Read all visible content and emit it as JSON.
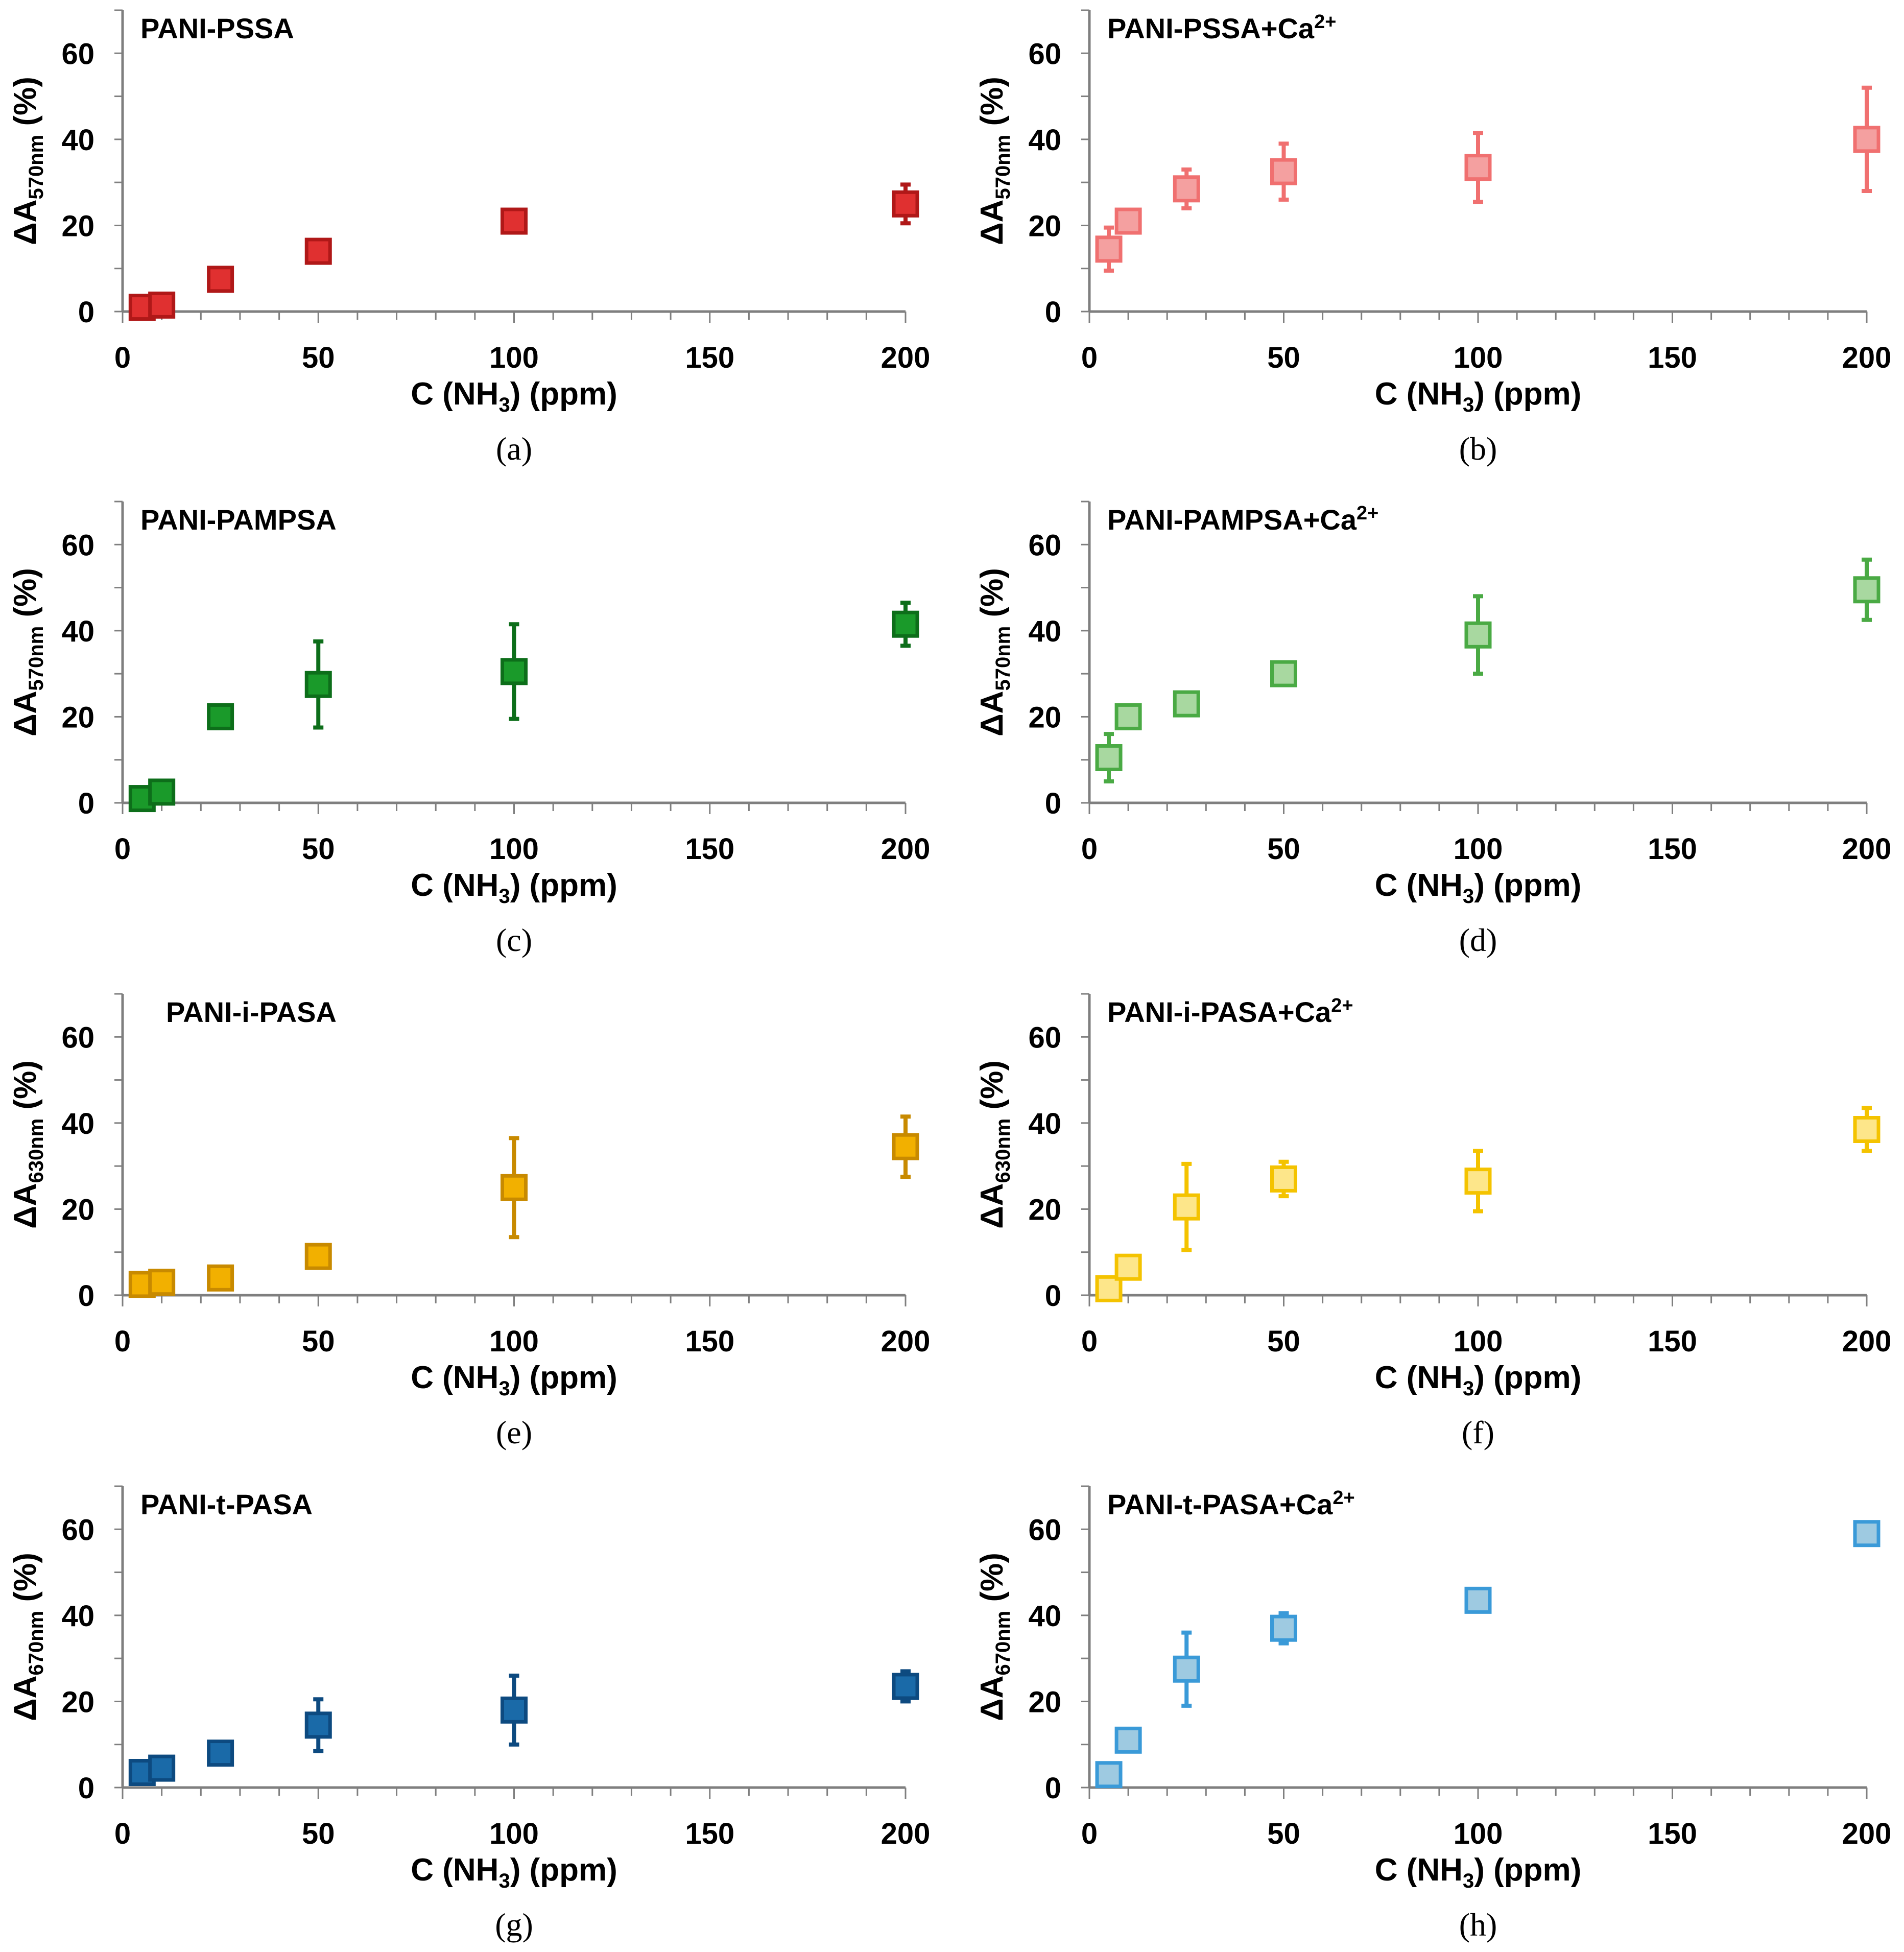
{
  "figure": {
    "x_axis_label_main": "C (NH",
    "x_axis_label_sub": "3",
    "x_axis_label_end": ") (ppm)"
  },
  "chart_data": [
    {
      "id": "a",
      "type": "scatter",
      "panel_label": "(a)",
      "title": "PANI-PSSA",
      "title_sup": "",
      "ylabel_main": "ΔA",
      "ylabel_sub": "570nm",
      "ylabel_end": " (%)",
      "xlim": [
        0,
        200
      ],
      "ylim": [
        0,
        70
      ],
      "xticks": [
        0,
        50,
        100,
        150,
        200
      ],
      "yticks": [
        0,
        20,
        40,
        60
      ],
      "color": "#e03030",
      "edge": "#b01818",
      "light": false,
      "points": [
        {
          "x": 5,
          "y": 1,
          "err": 0
        },
        {
          "x": 10,
          "y": 1.5,
          "err": 0
        },
        {
          "x": 25,
          "y": 7.5,
          "err": 0
        },
        {
          "x": 50,
          "y": 14,
          "err": 0
        },
        {
          "x": 100,
          "y": 21,
          "err": 0
        },
        {
          "x": 200,
          "y": 25,
          "err": 4.5
        }
      ]
    },
    {
      "id": "b",
      "type": "scatter",
      "panel_label": "(b)",
      "title": "PANI-PSSA+Ca",
      "title_sup": "2+",
      "ylabel_main": "ΔA",
      "ylabel_sub": "570nm",
      "ylabel_end": " (%)",
      "xlim": [
        0,
        200
      ],
      "ylim": [
        0,
        70
      ],
      "xticks": [
        0,
        50,
        100,
        150,
        200
      ],
      "yticks": [
        0,
        20,
        40,
        60
      ],
      "color": "#f4a0a0",
      "edge": "#f07070",
      "light": true,
      "points": [
        {
          "x": 5,
          "y": 14.5,
          "err": 5
        },
        {
          "x": 10,
          "y": 21,
          "err": 0
        },
        {
          "x": 25,
          "y": 28.5,
          "err": 4.5
        },
        {
          "x": 50,
          "y": 32.5,
          "err": 6.5
        },
        {
          "x": 100,
          "y": 33.5,
          "err": 8
        },
        {
          "x": 200,
          "y": 40,
          "err": 12
        }
      ]
    },
    {
      "id": "c",
      "type": "scatter",
      "panel_label": "(c)",
      "title": "PANI-PAMPSA",
      "title_sup": "",
      "ylabel_main": "ΔA",
      "ylabel_sub": "570nm",
      "ylabel_end": " (%)",
      "xlim": [
        0,
        200
      ],
      "ylim": [
        0,
        70
      ],
      "xticks": [
        0,
        50,
        100,
        150,
        200
      ],
      "yticks": [
        0,
        20,
        40,
        60
      ],
      "color": "#1a9a2a",
      "edge": "#0d6e1a",
      "light": false,
      "points": [
        {
          "x": 5,
          "y": 1,
          "err": 0
        },
        {
          "x": 10,
          "y": 2.5,
          "err": 0
        },
        {
          "x": 25,
          "y": 20,
          "err": 0
        },
        {
          "x": 50,
          "y": 27.5,
          "err": 10
        },
        {
          "x": 100,
          "y": 30.5,
          "err": 11
        },
        {
          "x": 200,
          "y": 41.5,
          "err": 5
        }
      ]
    },
    {
      "id": "d",
      "type": "scatter",
      "panel_label": "(d)",
      "title": "PANI-PAMPSA+Ca",
      "title_sup": "2+",
      "ylabel_main": "ΔA",
      "ylabel_sub": "570nm",
      "ylabel_end": " (%)",
      "xlim": [
        0,
        200
      ],
      "ylim": [
        0,
        70
      ],
      "xticks": [
        0,
        50,
        100,
        150,
        200
      ],
      "yticks": [
        0,
        20,
        40,
        60
      ],
      "color": "#a8d8a0",
      "edge": "#4aaa44",
      "light": true,
      "points": [
        {
          "x": 5,
          "y": 10.5,
          "err": 5.5
        },
        {
          "x": 10,
          "y": 20,
          "err": 0
        },
        {
          "x": 25,
          "y": 23,
          "err": 2.5
        },
        {
          "x": 50,
          "y": 30,
          "err": 0
        },
        {
          "x": 100,
          "y": 39,
          "err": 9
        },
        {
          "x": 200,
          "y": 49.5,
          "err": 7
        }
      ]
    },
    {
      "id": "e",
      "type": "scatter",
      "panel_label": "(e)",
      "title": "PANI-i-PASA",
      "title_sup": "",
      "ylabel_main": "ΔA",
      "ylabel_sub": "630nm",
      "ylabel_end": " (%)",
      "xlim": [
        0,
        200
      ],
      "ylim": [
        0,
        70
      ],
      "xticks": [
        0,
        50,
        100,
        150,
        200
      ],
      "yticks": [
        0,
        20,
        40,
        60
      ],
      "color": "#f2b000",
      "edge": "#c88a00",
      "light": false,
      "points": [
        {
          "x": 5,
          "y": 2.5,
          "err": 0
        },
        {
          "x": 10,
          "y": 3,
          "err": 2
        },
        {
          "x": 25,
          "y": 4,
          "err": 0
        },
        {
          "x": 50,
          "y": 9,
          "err": 0
        },
        {
          "x": 100,
          "y": 25,
          "err": 11.5
        },
        {
          "x": 200,
          "y": 34.5,
          "err": 7
        }
      ]
    },
    {
      "id": "f",
      "type": "scatter",
      "panel_label": "(f)",
      "title": "PANI-i-PASA+Ca",
      "title_sup": "2+",
      "ylabel_main": "ΔA",
      "ylabel_sub": "630nm",
      "ylabel_end": " (%)",
      "xlim": [
        0,
        200
      ],
      "ylim": [
        0,
        70
      ],
      "xticks": [
        0,
        50,
        100,
        150,
        200
      ],
      "yticks": [
        0,
        20,
        40,
        60
      ],
      "color": "#fde68a",
      "edge": "#f4c300",
      "light": true,
      "points": [
        {
          "x": 5,
          "y": 1.5,
          "err": 0
        },
        {
          "x": 10,
          "y": 6.5,
          "err": 0
        },
        {
          "x": 25,
          "y": 20.5,
          "err": 10
        },
        {
          "x": 50,
          "y": 27,
          "err": 4
        },
        {
          "x": 100,
          "y": 26.5,
          "err": 7
        },
        {
          "x": 200,
          "y": 38.5,
          "err": 5
        }
      ]
    },
    {
      "id": "g",
      "type": "scatter",
      "panel_label": "(g)",
      "title": "PANI-t-PASA",
      "title_sup": "",
      "ylabel_main": "ΔA",
      "ylabel_sub": "670nm",
      "ylabel_end": " (%)",
      "xlim": [
        0,
        200
      ],
      "ylim": [
        0,
        70
      ],
      "xticks": [
        0,
        50,
        100,
        150,
        200
      ],
      "yticks": [
        0,
        20,
        40,
        60
      ],
      "color": "#1a6aa8",
      "edge": "#0d4a80",
      "light": false,
      "points": [
        {
          "x": 5,
          "y": 3.5,
          "err": 0
        },
        {
          "x": 10,
          "y": 4.5,
          "err": 0
        },
        {
          "x": 25,
          "y": 8,
          "err": 0
        },
        {
          "x": 50,
          "y": 14.5,
          "err": 6
        },
        {
          "x": 100,
          "y": 18,
          "err": 8
        },
        {
          "x": 200,
          "y": 23.5,
          "err": 3.5
        }
      ]
    },
    {
      "id": "h",
      "type": "scatter",
      "panel_label": "(h)",
      "title": "PANI-t-PASA+Ca",
      "title_sup": "2+",
      "ylabel_main": "ΔA",
      "ylabel_sub": "670nm",
      "ylabel_end": " (%)",
      "xlim": [
        0,
        200
      ],
      "ylim": [
        0,
        70
      ],
      "xticks": [
        0,
        50,
        100,
        150,
        200
      ],
      "yticks": [
        0,
        20,
        40,
        60
      ],
      "color": "#9ecae1",
      "edge": "#3a9ad8",
      "light": true,
      "points": [
        {
          "x": 5,
          "y": 3,
          "err": 0
        },
        {
          "x": 10,
          "y": 11,
          "err": 0
        },
        {
          "x": 25,
          "y": 27.5,
          "err": 8.5
        },
        {
          "x": 50,
          "y": 37,
          "err": 3.5
        },
        {
          "x": 100,
          "y": 43.5,
          "err": 0
        },
        {
          "x": 200,
          "y": 59,
          "err": 0
        }
      ]
    }
  ]
}
